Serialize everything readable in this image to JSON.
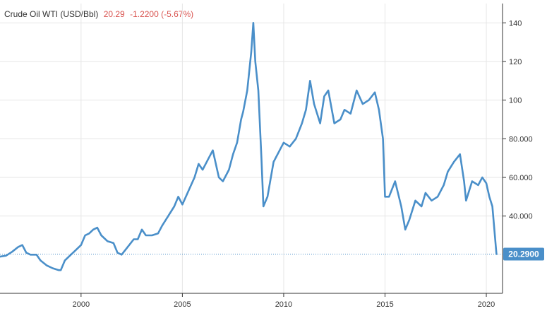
{
  "header": {
    "name": "Crude Oil WTI (USD/Bbl)",
    "price": "20.29",
    "change": "-1.2200 (-5.67%)"
  },
  "colors": {
    "line": "#4a8fc9",
    "grid": "#e6e6e6",
    "badge": "#4a8fc9",
    "negative": "#d9534f",
    "text": "#333333"
  },
  "chart_data": {
    "type": "line",
    "title": "Crude Oil WTI (USD/Bbl)",
    "xlabel": "",
    "ylabel": "",
    "xlim": [
      1996.0,
      2020.8
    ],
    "ylim": [
      0,
      150
    ],
    "x_ticks": [
      2000,
      2005,
      2010,
      2015,
      2020
    ],
    "x_tick_labels": [
      "2000",
      "2005",
      "2010",
      "2015",
      "2020"
    ],
    "y_ticks": [
      40,
      60,
      80,
      100,
      120,
      140
    ],
    "y_tick_labels": [
      "40.000",
      "60.000",
      "80.000",
      "100",
      "120",
      "140"
    ],
    "grid": true,
    "last_value": 20.29,
    "last_value_label": "20.2900",
    "series": [
      {
        "name": "Crude Oil WTI",
        "x": [
          1996.0,
          1996.3,
          1996.6,
          1996.9,
          1997.1,
          1997.3,
          1997.5,
          1997.8,
          1998.0,
          1998.3,
          1998.6,
          1998.9,
          1999.0,
          1999.2,
          1999.4,
          1999.7,
          2000.0,
          2000.2,
          2000.4,
          2000.6,
          2000.8,
          2001.0,
          2001.3,
          2001.6,
          2001.8,
          2002.0,
          2002.3,
          2002.6,
          2002.8,
          2003.0,
          2003.2,
          2003.5,
          2003.8,
          2004.0,
          2004.3,
          2004.6,
          2004.8,
          2005.0,
          2005.3,
          2005.6,
          2005.8,
          2006.0,
          2006.3,
          2006.5,
          2006.8,
          2007.0,
          2007.3,
          2007.5,
          2007.7,
          2007.9,
          2008.0,
          2008.2,
          2008.4,
          2008.5,
          2008.6,
          2008.75,
          2008.9,
          2009.0,
          2009.2,
          2009.5,
          2009.8,
          2010.0,
          2010.3,
          2010.6,
          2010.9,
          2011.1,
          2011.3,
          2011.5,
          2011.8,
          2012.0,
          2012.2,
          2012.5,
          2012.8,
          2013.0,
          2013.3,
          2013.6,
          2013.9,
          2014.2,
          2014.5,
          2014.7,
          2014.9,
          2015.0,
          2015.2,
          2015.5,
          2015.8,
          2016.0,
          2016.2,
          2016.5,
          2016.8,
          2017.0,
          2017.3,
          2017.6,
          2017.9,
          2018.1,
          2018.4,
          2018.7,
          2018.9,
          2019.0,
          2019.3,
          2019.6,
          2019.8,
          2020.0,
          2020.15,
          2020.3,
          2020.5
        ],
        "values": [
          19.0,
          19.5,
          21.5,
          24.0,
          25.0,
          21.0,
          20.0,
          20.0,
          17.0,
          14.5,
          13.0,
          12.0,
          12.0,
          17.0,
          19.0,
          22.0,
          25.0,
          30.0,
          31.0,
          33.0,
          34.0,
          30.0,
          27.0,
          26.0,
          21.0,
          20.0,
          24.0,
          28.0,
          28.0,
          33.0,
          30.0,
          30.0,
          31.0,
          35.0,
          40.0,
          45.0,
          50.0,
          46.0,
          53.0,
          60.0,
          67.0,
          64.0,
          70.0,
          74.0,
          60.0,
          58.0,
          64.0,
          72.0,
          78.0,
          90.0,
          94.0,
          105.0,
          125.0,
          140.0,
          120.0,
          105.0,
          70.0,
          45.0,
          50.0,
          68.0,
          74.0,
          78.0,
          76.0,
          80.0,
          88.0,
          95.0,
          110.0,
          98.0,
          88.0,
          102.0,
          105.0,
          88.0,
          90.0,
          95.0,
          93.0,
          105.0,
          98.0,
          100.0,
          104.0,
          95.0,
          80.0,
          50.0,
          50.0,
          58.0,
          45.0,
          33.0,
          38.0,
          48.0,
          45.0,
          52.0,
          48.0,
          50.0,
          56.0,
          63.0,
          68.0,
          72.0,
          58.0,
          48.0,
          58.0,
          56.0,
          60.0,
          57.0,
          50.0,
          45.0,
          20.29
        ]
      }
    ]
  }
}
